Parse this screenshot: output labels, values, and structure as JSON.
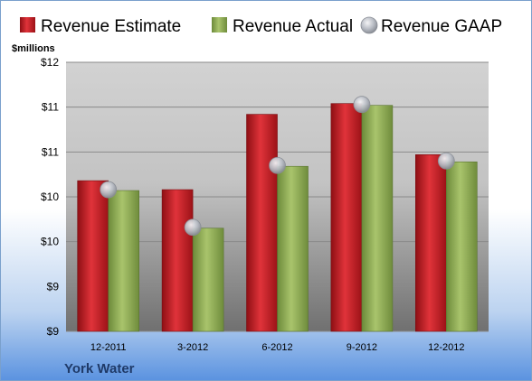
{
  "company_label": "York Water",
  "chart_data": {
    "type": "bar",
    "unit_label": "$millions",
    "categories": [
      "12-2011",
      "3-2012",
      "6-2012",
      "9-2012",
      "12-2012"
    ],
    "series": [
      {
        "name": "Revenue Estimate",
        "kind": "bar",
        "color": "#c0151b",
        "values": [
          10.18,
          10.08,
          10.92,
          11.04,
          10.47
        ]
      },
      {
        "name": "Revenue Actual",
        "kind": "bar",
        "color": "#8fae55",
        "values": [
          10.07,
          9.65,
          10.34,
          11.02,
          10.39
        ]
      },
      {
        "name": "Revenue GAAP",
        "kind": "marker",
        "color": "#b8bcc4",
        "values": [
          10.08,
          9.66,
          10.35,
          11.03,
          10.4
        ]
      }
    ],
    "ylim": [
      8.5,
      11.5
    ],
    "ytick_values": [
      8.5,
      9,
      9.5,
      10,
      10.5,
      11,
      11.5
    ],
    "ytick_labels": [
      "$9",
      "$9",
      "$10",
      "$10",
      "$11",
      "$11",
      "$12"
    ],
    "grid": true,
    "legend_position": "top"
  }
}
